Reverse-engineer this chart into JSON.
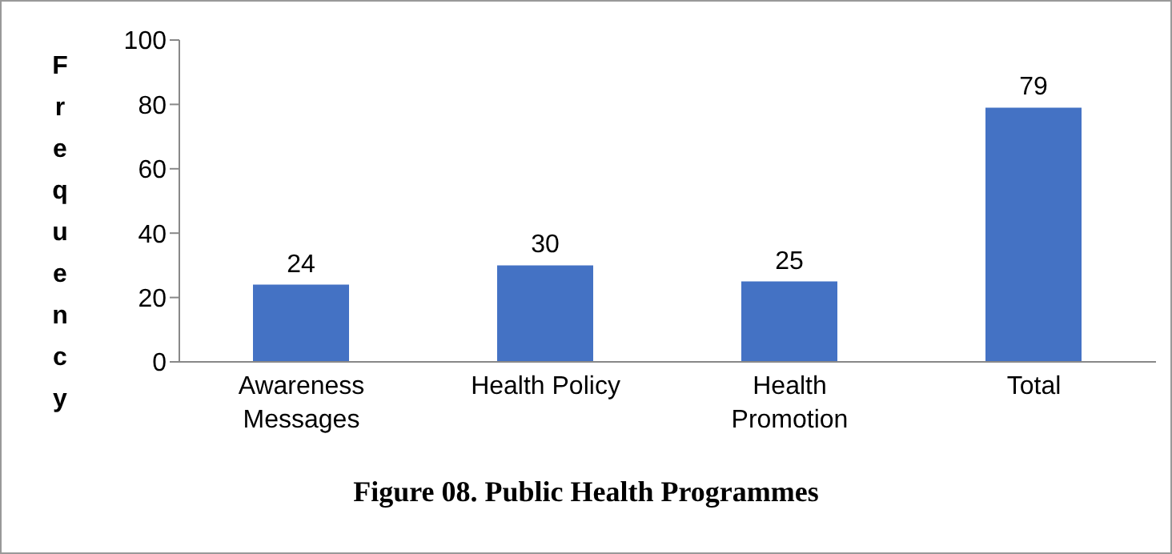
{
  "chart_data": {
    "type": "bar",
    "title": "Figure 08. Public Health Programmes",
    "ylabel": "Frequency",
    "categories": [
      "Awareness Messages",
      "Health Policy",
      "Health Promotion",
      "Total"
    ],
    "values": [
      24,
      30,
      25,
      79
    ],
    "color": "#4472c4",
    "ylim": [
      0,
      100
    ],
    "yticks": [
      0,
      20,
      40,
      60,
      80,
      100
    ],
    "grid": false,
    "data_labels": true
  }
}
